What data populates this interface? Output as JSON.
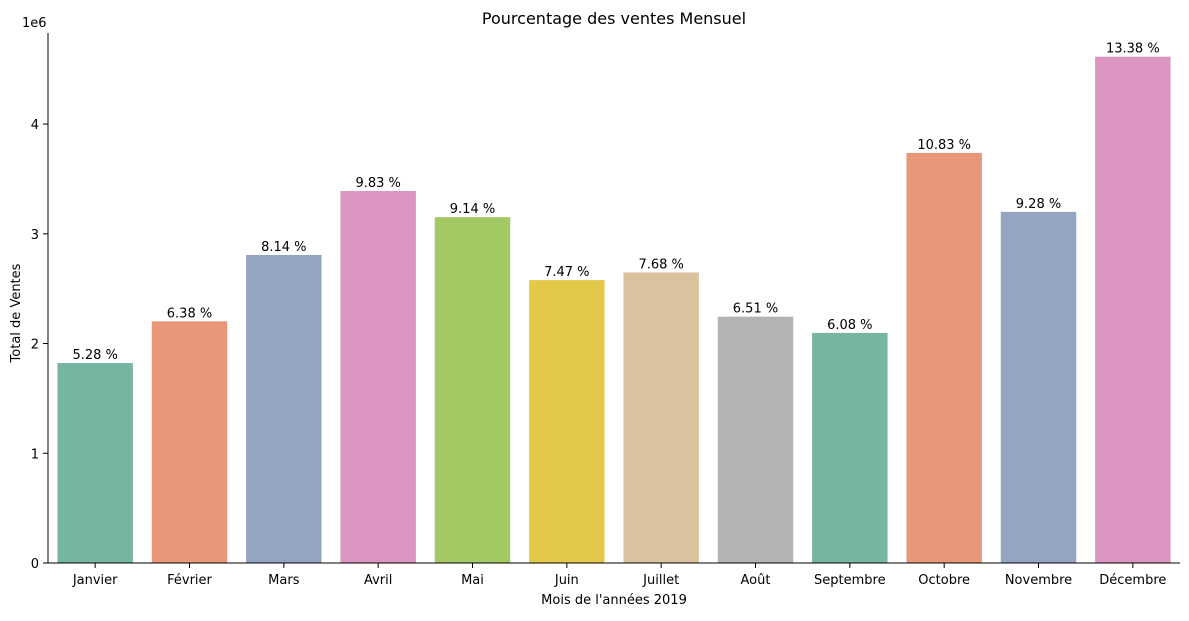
{
  "chart_data": {
    "type": "bar",
    "title": "Pourcentage des ventes Mensuel",
    "xlabel": "Mois de l'années 2019",
    "ylabel": "Total de Ventes",
    "y_offset_label": "1e6",
    "y_scale": 1000000,
    "ylim": [
      0,
      4830000
    ],
    "yticks": [
      0,
      1,
      2,
      3,
      4
    ],
    "grid": false,
    "categories": [
      "Janvier",
      "Février",
      "Mars",
      "Avril",
      "Mai",
      "Juin",
      "Juillet",
      "Août",
      "Septembre",
      "Octobre",
      "Novembre",
      "Décembre"
    ],
    "values": [
      1822000,
      2203000,
      2807000,
      3390000,
      3152000,
      2578000,
      2648000,
      2245000,
      2097000,
      3737000,
      3200000,
      4614000
    ],
    "data_labels": [
      "5.28 %",
      "6.38 %",
      "8.14 %",
      "9.83 %",
      "9.14 %",
      "7.47 %",
      "7.68 %",
      "6.51 %",
      "6.08 %",
      "10.83 %",
      "9.28 %",
      "13.38 %"
    ],
    "colors": [
      "#76b5a0",
      "#e8977a",
      "#94a4c2",
      "#da96c0",
      "#a3c965",
      "#e3c84a",
      "#d9c29d",
      "#b3b3b3",
      "#76b5a0",
      "#e8977a",
      "#94a4c2",
      "#da96c0"
    ]
  }
}
